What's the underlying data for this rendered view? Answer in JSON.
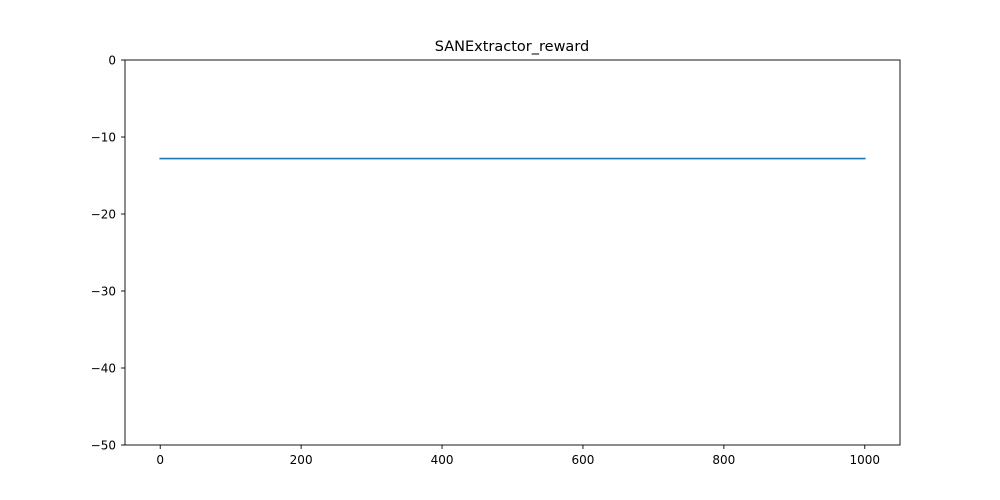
{
  "chart_data": {
    "type": "line",
    "title": "SANExtractor_reward",
    "xlabel": "",
    "ylabel": "",
    "xlim": [
      -50,
      1050
    ],
    "ylim": [
      -50,
      0
    ],
    "xticks": [
      0,
      200,
      400,
      600,
      800,
      1000
    ],
    "yticks": [
      0,
      -10,
      -20,
      -30,
      -40,
      -50
    ],
    "xtick_labels": [
      "0",
      "200",
      "400",
      "600",
      "800",
      "1000"
    ],
    "ytick_labels": [
      "0",
      "−10",
      "−20",
      "−30",
      "−40",
      "−50"
    ],
    "grid": false,
    "legend": "none",
    "series": [
      {
        "color": "#1f77b4",
        "x": [
          0,
          1000
        ],
        "y": [
          -12.8,
          -12.8
        ]
      }
    ]
  }
}
